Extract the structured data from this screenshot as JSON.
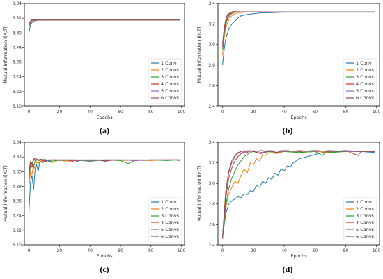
{
  "figure": {
    "legend_labels": [
      "1 Conv",
      "2 Convs",
      "3 Convs",
      "4 Convs",
      "5 Convs",
      "6 Convs"
    ],
    "legend_position": "lower-right",
    "series_colors": [
      "#1f77b4",
      "#ff7f0e",
      "#2ca02c",
      "#d62728",
      "#9467bd",
      "#8c564b"
    ]
  },
  "chart_data": [
    {
      "type": "line",
      "caption": "(a)",
      "xlabel": "Epochs",
      "ylabel": "Mutual Information I(X;T)",
      "xlim": [
        -3,
        102
      ],
      "ylim": [
        3.2,
        3.34
      ],
      "xticks": [
        0,
        20,
        40,
        60,
        80,
        100
      ],
      "yticks": [
        3.2,
        3.22,
        3.24,
        3.26,
        3.28,
        3.3,
        3.32,
        3.34
      ],
      "ytick_labels": [
        "3.20",
        "3.22",
        "3.24",
        "3.26",
        "3.28",
        "3.30",
        "3.32",
        "3.34"
      ],
      "series": [
        {
          "name": "1 Conv",
          "x": [
            0,
            1,
            2,
            3,
            5,
            8,
            12,
            20,
            50,
            99
          ],
          "values": [
            3.3,
            3.311,
            3.314,
            3.316,
            3.317,
            3.3175,
            3.3175,
            3.3175,
            3.3175,
            3.3175
          ]
        },
        {
          "name": "2 Convs",
          "x": [
            0,
            1,
            2,
            3,
            5,
            8,
            20,
            99
          ],
          "values": [
            3.308,
            3.313,
            3.316,
            3.317,
            3.318,
            3.3175,
            3.3175,
            3.3175
          ]
        },
        {
          "name": "3 Convs",
          "x": [
            0,
            1,
            2,
            4,
            8,
            20,
            99
          ],
          "values": [
            3.31,
            3.315,
            3.317,
            3.318,
            3.3175,
            3.3175,
            3.3175
          ]
        },
        {
          "name": "4 Convs",
          "x": [
            0,
            1,
            2,
            4,
            8,
            20,
            99
          ],
          "values": [
            3.312,
            3.316,
            3.318,
            3.3175,
            3.3175,
            3.3175,
            3.3175
          ]
        },
        {
          "name": "5 Convs",
          "x": [
            0,
            1,
            2,
            4,
            8,
            20,
            99
          ],
          "values": [
            3.311,
            3.315,
            3.317,
            3.318,
            3.3175,
            3.3175,
            3.3175
          ]
        },
        {
          "name": "6 Convs",
          "x": [
            0,
            1,
            2,
            4,
            8,
            20,
            99
          ],
          "values": [
            3.313,
            3.316,
            3.318,
            3.3175,
            3.3175,
            3.3175,
            3.3175
          ]
        }
      ]
    },
    {
      "type": "line",
      "caption": "(b)",
      "xlabel": "Epochs",
      "ylabel": "Mutual Information I(Y;T)",
      "xlim": [
        -3,
        102
      ],
      "ylim": [
        2.4,
        3.4
      ],
      "xticks": [
        0,
        20,
        40,
        60,
        80,
        100
      ],
      "yticks": [
        2.4,
        2.6,
        2.8,
        3.0,
        3.2,
        3.4
      ],
      "ytick_labels": [
        "2.4",
        "2.6",
        "2.8",
        "3.0",
        "3.2",
        "3.4"
      ],
      "series": [
        {
          "name": "1 Conv",
          "x": [
            0,
            1,
            2,
            3,
            4,
            6,
            8,
            10,
            12,
            15,
            20,
            25,
            30,
            40,
            60,
            99
          ],
          "values": [
            2.8,
            2.95,
            3.05,
            3.1,
            3.15,
            3.2,
            3.23,
            3.26,
            3.28,
            3.29,
            3.3,
            3.31,
            3.31,
            3.315,
            3.315,
            3.315
          ]
        },
        {
          "name": "2 Convs",
          "x": [
            0,
            1,
            2,
            3,
            4,
            6,
            8,
            10,
            14,
            20,
            30,
            99
          ],
          "values": [
            2.9,
            3.06,
            3.15,
            3.2,
            3.24,
            3.28,
            3.3,
            3.31,
            3.315,
            3.318,
            3.316,
            3.316
          ]
        },
        {
          "name": "3 Convs",
          "x": [
            0,
            1,
            2,
            3,
            5,
            7,
            10,
            14,
            20,
            99
          ],
          "values": [
            2.95,
            3.1,
            3.19,
            3.24,
            3.29,
            3.31,
            3.32,
            3.317,
            3.317,
            3.317
          ]
        },
        {
          "name": "4 Convs",
          "x": [
            0,
            1,
            2,
            3,
            5,
            7,
            10,
            14,
            20,
            99
          ],
          "values": [
            2.98,
            3.13,
            3.21,
            3.26,
            3.3,
            3.32,
            3.318,
            3.32,
            3.317,
            3.317
          ]
        },
        {
          "name": "5 Convs",
          "x": [
            0,
            1,
            2,
            3,
            5,
            7,
            10,
            14,
            20,
            99
          ],
          "values": [
            3.0,
            3.15,
            3.23,
            3.28,
            3.31,
            3.322,
            3.318,
            3.318,
            3.317,
            3.317
          ]
        },
        {
          "name": "6 Convs",
          "x": [
            0,
            1,
            2,
            3,
            5,
            7,
            10,
            14,
            20,
            99
          ],
          "values": [
            3.01,
            3.16,
            3.24,
            3.29,
            3.31,
            3.322,
            3.318,
            3.318,
            3.317,
            3.317
          ]
        }
      ]
    },
    {
      "type": "line",
      "caption": "(c)",
      "xlabel": "Epochs",
      "ylabel": "Mutual Information I(X;T)",
      "xlim": [
        -3,
        102
      ],
      "ylim": [
        3.2,
        3.34
      ],
      "xticks": [
        0,
        20,
        40,
        60,
        80,
        100
      ],
      "yticks": [
        3.2,
        3.22,
        3.24,
        3.26,
        3.28,
        3.3,
        3.32,
        3.34
      ],
      "ytick_labels": [
        "3.20",
        "3.22",
        "3.24",
        "3.26",
        "3.28",
        "3.30",
        "3.32",
        "3.34"
      ],
      "series": [
        {
          "name": "1 Conv",
          "x": [
            0,
            1,
            2,
            3,
            4,
            5,
            6,
            7,
            8,
            9,
            10,
            12,
            15,
            20,
            25,
            30,
            35,
            40,
            45,
            50,
            55,
            60,
            65,
            70,
            75,
            80,
            85,
            90,
            95,
            99
          ],
          "values": [
            3.245,
            3.285,
            3.295,
            3.275,
            3.302,
            3.31,
            3.3,
            3.312,
            3.314,
            3.312,
            3.316,
            3.313,
            3.316,
            3.315,
            3.316,
            3.313,
            3.316,
            3.315,
            3.316,
            3.314,
            3.316,
            3.315,
            3.316,
            3.315,
            3.316,
            3.315,
            3.316,
            3.315,
            3.316,
            3.315
          ]
        },
        {
          "name": "2 Convs",
          "x": [
            0,
            1,
            2,
            3,
            4,
            5,
            6,
            8,
            10,
            12,
            15,
            20,
            25,
            30,
            40,
            50,
            60,
            70,
            80,
            90,
            99
          ],
          "values": [
            3.28,
            3.3,
            3.296,
            3.31,
            3.304,
            3.314,
            3.311,
            3.316,
            3.313,
            3.316,
            3.312,
            3.316,
            3.313,
            3.316,
            3.315,
            3.316,
            3.315,
            3.316,
            3.315,
            3.316,
            3.316
          ]
        },
        {
          "name": "3 Convs",
          "x": [
            0,
            1,
            2,
            3,
            4,
            6,
            8,
            10,
            14,
            20,
            25,
            30,
            40,
            50,
            60,
            65,
            70,
            75,
            80,
            90,
            99
          ],
          "values": [
            3.29,
            3.308,
            3.312,
            3.304,
            3.315,
            3.316,
            3.313,
            3.317,
            3.314,
            3.316,
            3.315,
            3.316,
            3.314,
            3.316,
            3.315,
            3.311,
            3.316,
            3.315,
            3.316,
            3.315,
            3.316
          ]
        },
        {
          "name": "4 Convs",
          "x": [
            0,
            1,
            2,
            3,
            4,
            6,
            8,
            10,
            14,
            20,
            30,
            40,
            50,
            60,
            70,
            80,
            90,
            99
          ],
          "values": [
            3.295,
            3.311,
            3.306,
            3.315,
            3.318,
            3.315,
            3.317,
            3.314,
            3.316,
            3.316,
            3.315,
            3.316,
            3.315,
            3.316,
            3.315,
            3.316,
            3.316,
            3.316
          ]
        },
        {
          "name": "5 Convs",
          "x": [
            0,
            1,
            2,
            3,
            4,
            6,
            8,
            10,
            14,
            20,
            30,
            40,
            50,
            60,
            70,
            80,
            90,
            99
          ],
          "values": [
            3.298,
            3.313,
            3.309,
            3.316,
            3.318,
            3.316,
            3.317,
            3.315,
            3.316,
            3.316,
            3.316,
            3.315,
            3.316,
            3.316,
            3.315,
            3.316,
            3.316,
            3.316
          ]
        },
        {
          "name": "6 Convs",
          "x": [
            0,
            1,
            2,
            3,
            4,
            6,
            8,
            10,
            14,
            20,
            30,
            40,
            50,
            60,
            70,
            80,
            90,
            99
          ],
          "values": [
            3.3,
            3.314,
            3.31,
            3.317,
            3.318,
            3.316,
            3.317,
            3.316,
            3.316,
            3.316,
            3.316,
            3.316,
            3.316,
            3.316,
            3.316,
            3.316,
            3.316,
            3.316
          ]
        }
      ]
    },
    {
      "type": "line",
      "caption": "(d)",
      "xlabel": "Epochs",
      "ylabel": "Mutual Information I(Y;T)",
      "xlim": [
        -3,
        102
      ],
      "ylim": [
        2.4,
        3.4
      ],
      "xticks": [
        0,
        20,
        40,
        60,
        80,
        100
      ],
      "yticks": [
        2.4,
        2.6,
        2.8,
        3.0,
        3.2,
        3.4
      ],
      "ytick_labels": [
        "2.4",
        "2.6",
        "2.8",
        "3.0",
        "3.2",
        "3.4"
      ],
      "series": [
        {
          "name": "1 Conv",
          "x": [
            0,
            2,
            4,
            6,
            8,
            10,
            12,
            14,
            16,
            18,
            20,
            22,
            24,
            26,
            28,
            30,
            32,
            34,
            36,
            38,
            40,
            42,
            44,
            46,
            48,
            50,
            55,
            60,
            65,
            70,
            75,
            80,
            90,
            99
          ],
          "values": [
            2.48,
            2.7,
            2.8,
            2.83,
            2.85,
            2.87,
            2.86,
            2.9,
            2.89,
            2.93,
            2.92,
            2.98,
            2.96,
            3.02,
            3.0,
            3.06,
            3.04,
            3.1,
            3.08,
            3.14,
            3.12,
            3.17,
            3.16,
            3.2,
            3.22,
            3.24,
            3.26,
            3.28,
            3.3,
            3.3,
            3.31,
            3.31,
            3.31,
            3.3
          ]
        },
        {
          "name": "2 Convs",
          "x": [
            0,
            2,
            4,
            6,
            8,
            10,
            12,
            14,
            16,
            18,
            20,
            22,
            24,
            26,
            28,
            30,
            35,
            40,
            50,
            60,
            70,
            80,
            90,
            99
          ],
          "values": [
            2.48,
            2.75,
            2.9,
            2.96,
            3.02,
            3.0,
            3.08,
            3.14,
            3.1,
            3.2,
            3.18,
            3.24,
            3.22,
            3.28,
            3.27,
            3.3,
            3.29,
            3.31,
            3.3,
            3.31,
            3.3,
            3.31,
            3.31,
            3.31
          ]
        },
        {
          "name": "3 Convs",
          "x": [
            0,
            2,
            4,
            6,
            8,
            10,
            12,
            14,
            16,
            18,
            20,
            25,
            30,
            35,
            40,
            50,
            60,
            65,
            67,
            70,
            80,
            90,
            99
          ],
          "values": [
            2.46,
            2.78,
            2.95,
            3.05,
            3.12,
            3.18,
            3.22,
            3.26,
            3.28,
            3.3,
            3.31,
            3.29,
            3.31,
            3.3,
            3.31,
            3.3,
            3.31,
            3.27,
            3.31,
            3.3,
            3.31,
            3.31,
            3.31
          ]
        },
        {
          "name": "4 Convs",
          "x": [
            0,
            2,
            4,
            6,
            8,
            10,
            12,
            14,
            16,
            18,
            20,
            25,
            30,
            35,
            40,
            50,
            60,
            70,
            80,
            88,
            90,
            99
          ],
          "values": [
            2.47,
            2.85,
            3.05,
            3.15,
            3.22,
            3.26,
            3.29,
            3.31,
            3.3,
            3.32,
            3.31,
            3.29,
            3.32,
            3.3,
            3.32,
            3.31,
            3.32,
            3.31,
            3.32,
            3.27,
            3.31,
            3.31
          ]
        },
        {
          "name": "5 Convs",
          "x": [
            0,
            2,
            4,
            6,
            8,
            10,
            12,
            14,
            16,
            18,
            20,
            25,
            30,
            40,
            50,
            60,
            70,
            80,
            90,
            99
          ],
          "values": [
            2.48,
            2.9,
            3.1,
            3.2,
            3.26,
            3.29,
            3.31,
            3.3,
            3.32,
            3.31,
            3.32,
            3.3,
            3.32,
            3.31,
            3.32,
            3.31,
            3.32,
            3.31,
            3.31,
            3.31
          ]
        },
        {
          "name": "6 Convs",
          "x": [
            0,
            2,
            4,
            6,
            8,
            10,
            12,
            14,
            16,
            18,
            20,
            25,
            30,
            40,
            50,
            60,
            70,
            80,
            90,
            99
          ],
          "values": [
            2.49,
            2.92,
            3.12,
            3.22,
            3.27,
            3.3,
            3.31,
            3.32,
            3.31,
            3.32,
            3.31,
            3.32,
            3.31,
            3.32,
            3.31,
            3.32,
            3.31,
            3.32,
            3.31,
            3.31
          ]
        }
      ]
    }
  ]
}
